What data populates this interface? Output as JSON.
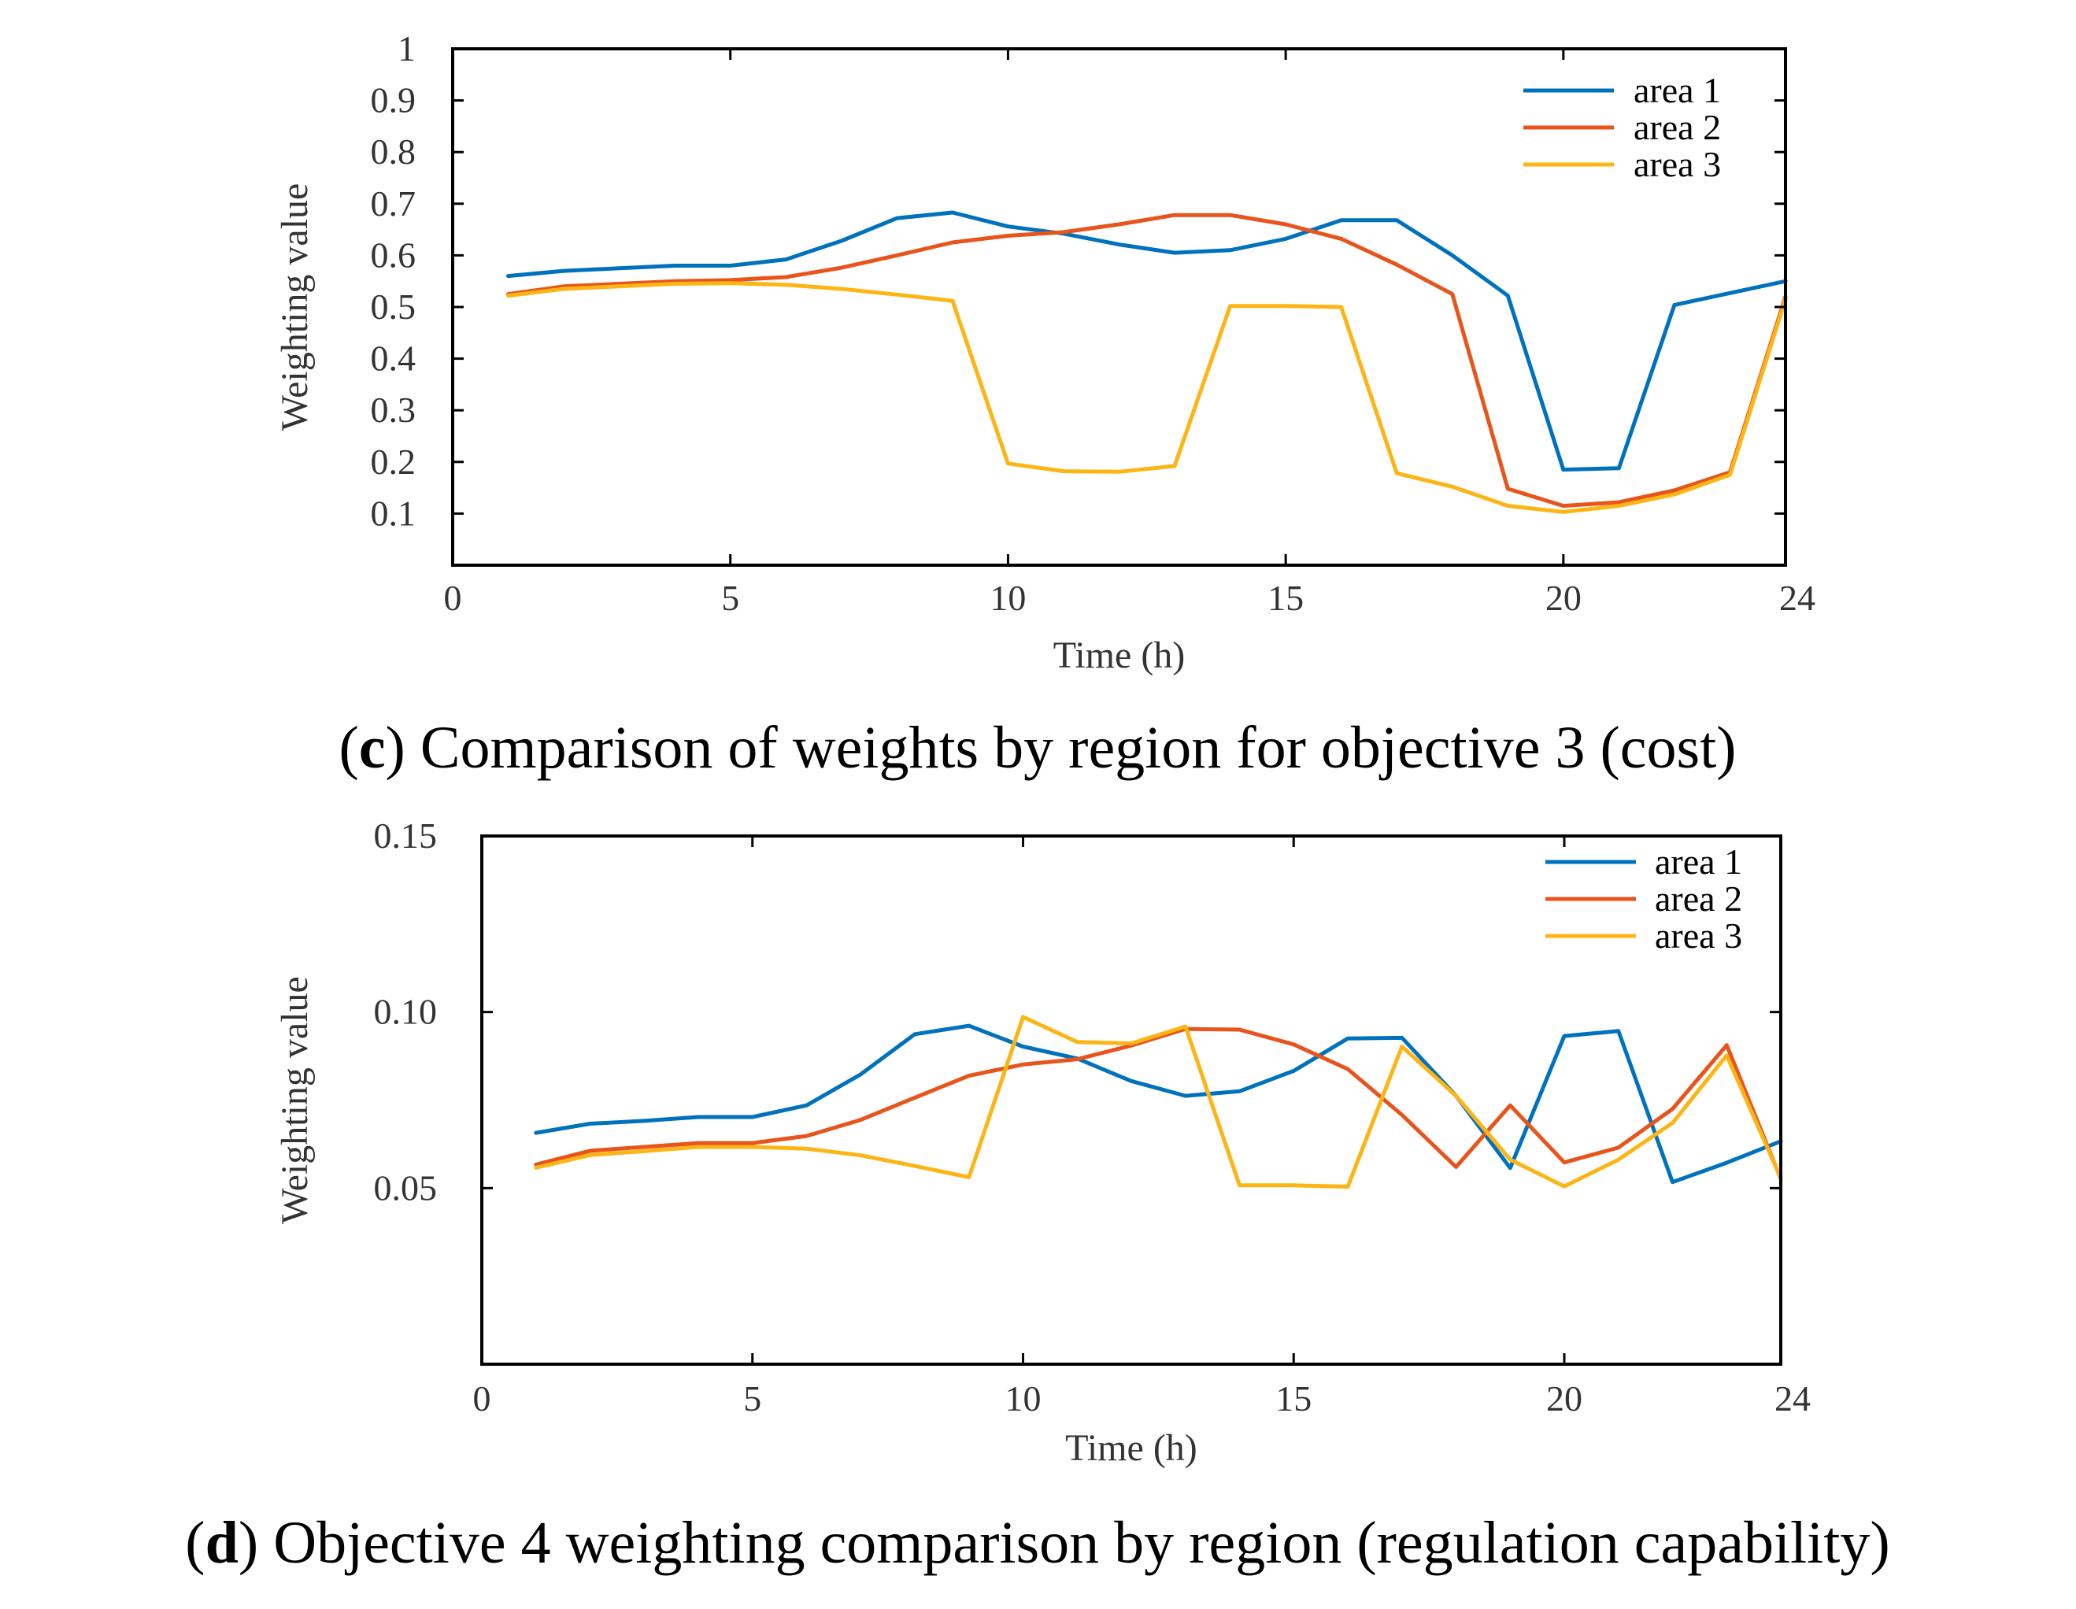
{
  "chart_data": [
    {
      "type": "line",
      "panel_letter": "c",
      "caption": "Comparison of weights by region for objective 3 (cost)",
      "xlabel": "Time (h)",
      "ylabel": "Weighting value",
      "xlim": [
        0,
        24
      ],
      "ylim": [
        0,
        1
      ],
      "x_ticks": [
        0,
        5,
        10,
        15,
        20,
        24
      ],
      "x_tick_labels": [
        "0",
        "5",
        "10",
        "15",
        "20",
        "24"
      ],
      "y_ticks": [
        0.1,
        0.2,
        0.3,
        0.4,
        0.5,
        0.6,
        0.7,
        0.8,
        0.9,
        1
      ],
      "y_tick_labels": [
        "0.1",
        "0.2",
        "0.3",
        "0.4",
        "0.5",
        "0.6",
        "0.7",
        "0.8",
        "0.9",
        "1"
      ],
      "legend_position": "top-right",
      "x": [
        1,
        2,
        3,
        4,
        5,
        6,
        7,
        8,
        9,
        10,
        11,
        12,
        13,
        14,
        15,
        16,
        17,
        18,
        19,
        20,
        21,
        22,
        23,
        24
      ],
      "series": [
        {
          "name": "area 1",
          "color": "#0072bd",
          "values": [
            0.56,
            0.57,
            0.575,
            0.58,
            0.58,
            0.592,
            0.628,
            0.672,
            0.683,
            0.656,
            0.642,
            0.621,
            0.605,
            0.61,
            0.632,
            0.668,
            0.668,
            0.6,
            0.522,
            0.185,
            0.188,
            0.504,
            0.527,
            0.55
          ]
        },
        {
          "name": "area 2",
          "color": "#e8541b",
          "values": [
            0.525,
            0.54,
            0.545,
            0.55,
            0.552,
            0.558,
            0.576,
            0.6,
            0.625,
            0.638,
            0.645,
            0.66,
            0.678,
            0.678,
            0.66,
            0.632,
            0.582,
            0.525,
            0.148,
            0.115,
            0.122,
            0.145,
            0.18,
            0.52
          ]
        },
        {
          "name": "area 3",
          "color": "#fdb515",
          "values": [
            0.522,
            0.535,
            0.54,
            0.545,
            0.546,
            0.543,
            0.535,
            0.524,
            0.512,
            0.197,
            0.182,
            0.181,
            0.192,
            0.502,
            0.502,
            0.5,
            0.178,
            0.152,
            0.115,
            0.103,
            0.115,
            0.137,
            0.175,
            0.515
          ]
        }
      ]
    },
    {
      "type": "line",
      "panel_letter": "d",
      "caption": "Objective 4 weighting comparison by region (regulation capability)",
      "xlabel": "Time (h)",
      "ylabel": "Weighting value",
      "xlim": [
        0,
        24
      ],
      "ylim": [
        0,
        0.15
      ],
      "x_ticks": [
        0,
        5,
        10,
        15,
        20,
        24
      ],
      "x_tick_labels": [
        "0",
        "5",
        "10",
        "15",
        "20",
        "24"
      ],
      "y_ticks": [
        0.05,
        0.1,
        0.15
      ],
      "y_tick_labels": [
        "0.05",
        "0.10",
        "0.15"
      ],
      "legend_position": "top-right",
      "x": [
        1,
        2,
        3,
        4,
        5,
        6,
        7,
        8,
        9,
        10,
        11,
        12,
        13,
        14,
        15,
        16,
        17,
        18,
        19,
        20,
        21,
        22,
        23,
        24
      ],
      "series": [
        {
          "name": "area 1",
          "color": "#0072bd",
          "values": [
            0.0657,
            0.0683,
            0.0691,
            0.0702,
            0.0702,
            0.0735,
            0.0823,
            0.0937,
            0.0961,
            0.0902,
            0.0868,
            0.0804,
            0.0762,
            0.0775,
            0.0833,
            0.0925,
            0.0927,
            0.0762,
            0.0557,
            0.0932,
            0.0946,
            0.0517,
            0.0572,
            0.0633
          ]
        },
        {
          "name": "area 2",
          "color": "#e8541b",
          "values": [
            0.0567,
            0.0606,
            0.0617,
            0.0628,
            0.0628,
            0.0648,
            0.0694,
            0.0757,
            0.0819,
            0.0851,
            0.0866,
            0.0905,
            0.0952,
            0.095,
            0.0908,
            0.0838,
            0.0708,
            0.056,
            0.0735,
            0.0573,
            0.0615,
            0.0725,
            0.0906,
            0.0526
          ]
        },
        {
          "name": "area 3",
          "color": "#fdb515",
          "values": [
            0.0558,
            0.0594,
            0.0605,
            0.0617,
            0.0617,
            0.0612,
            0.0593,
            0.0563,
            0.0531,
            0.0986,
            0.0915,
            0.0911,
            0.0959,
            0.0508,
            0.0508,
            0.0504,
            0.0902,
            0.0762,
            0.0581,
            0.0505,
            0.0581,
            0.0685,
            0.0877,
            0.0528
          ]
        }
      ]
    }
  ]
}
